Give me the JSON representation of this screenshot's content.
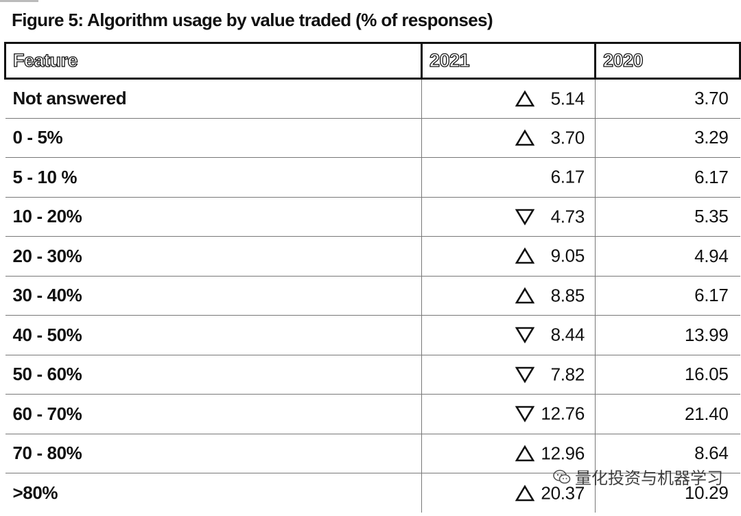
{
  "figure": {
    "title": "Figure 5: Algorithm usage by value traded (% of responses)"
  },
  "watermark": {
    "text": "量化投资与机器学习",
    "icon": "wechat-icon"
  },
  "chart_data": {
    "type": "table",
    "title": "Figure 5: Algorithm usage by value traded (% of responses)",
    "columns": [
      "Feature",
      "2021",
      "2020"
    ],
    "rows": [
      {
        "feature": "Not answered",
        "trend": "up",
        "v2021": "5.14",
        "v2020": "3.70"
      },
      {
        "feature": "0 - 5%",
        "trend": "up",
        "v2021": "3.70",
        "v2020": "3.29"
      },
      {
        "feature": "5 - 10 %",
        "trend": "none",
        "v2021": "6.17",
        "v2020": "6.17"
      },
      {
        "feature": "10 - 20%",
        "trend": "down",
        "v2021": "4.73",
        "v2020": "5.35"
      },
      {
        "feature": "20 - 30%",
        "trend": "up",
        "v2021": "9.05",
        "v2020": "4.94"
      },
      {
        "feature": "30 - 40%",
        "trend": "up",
        "v2021": "8.85",
        "v2020": "6.17"
      },
      {
        "feature": "40 - 50%",
        "trend": "down",
        "v2021": "8.44",
        "v2020": "13.99"
      },
      {
        "feature": "50 - 60%",
        "trend": "down",
        "v2021": "7.82",
        "v2020": "16.05"
      },
      {
        "feature": "60 - 70%",
        "trend": "down",
        "v2021": "12.76",
        "v2020": "21.40"
      },
      {
        "feature": "70 - 80%",
        "trend": "up",
        "v2021": "12.96",
        "v2020": "8.64"
      },
      {
        "feature": ">80%",
        "trend": "up",
        "v2021": "20.37",
        "v2020": "10.29"
      }
    ]
  }
}
